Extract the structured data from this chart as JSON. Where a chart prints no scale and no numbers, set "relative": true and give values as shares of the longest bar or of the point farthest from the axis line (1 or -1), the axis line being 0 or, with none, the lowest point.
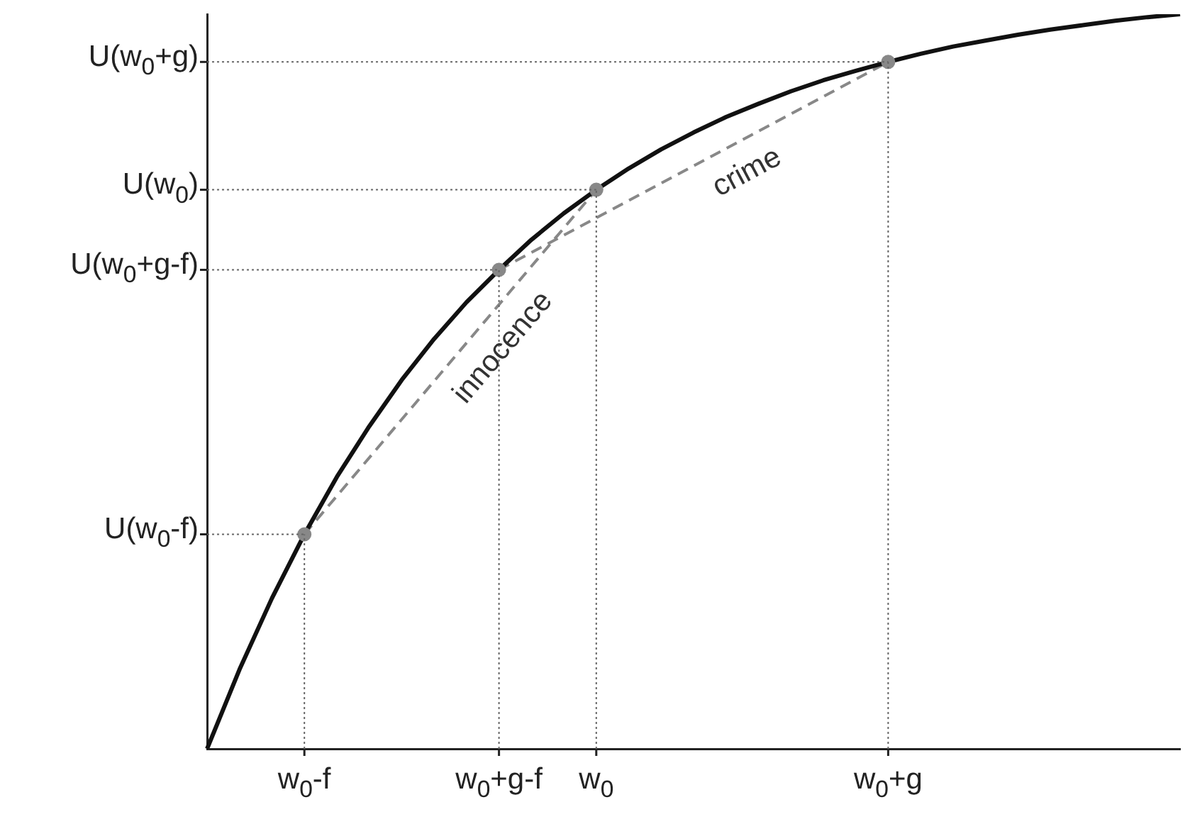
{
  "chart_data": {
    "type": "line",
    "relative": true,
    "categories": [
      null,
      null,
      null,
      "w$_{0}$-f",
      null,
      null,
      null,
      null,
      null,
      "w$_{0}$+g-f",
      null,
      null,
      "w$_{0}$",
      null,
      null,
      null,
      null,
      null,
      null,
      null,
      null,
      "w$_{0}$+g",
      null,
      null,
      null,
      null,
      null,
      null,
      null,
      null,
      null
    ],
    "series": [
      {
        "color": "#111111",
        "line_style": "solid",
        "marker": "none",
        "values": [
          0,
          0.108,
          0.205,
          0.292,
          0.37,
          0.439,
          0.502,
          0.558,
          0.608,
          0.652,
          0.693,
          0.729,
          0.761,
          0.79,
          0.816,
          0.839,
          0.86,
          0.878,
          0.895,
          0.91,
          0.923,
          0.935,
          0.946,
          0.956,
          0.964,
          0.972,
          0.979,
          0.985,
          0.991,
          0.996,
          1
        ]
      },
      {
        "color": "#888888",
        "line_style": "dashed",
        "marker": "none",
        "values": [
          null,
          null,
          null,
          0.292,
          null,
          null,
          null,
          null,
          null,
          null,
          null,
          null,
          0.761,
          null,
          null,
          null,
          null,
          null,
          null,
          null,
          null,
          null,
          null,
          null,
          null,
          null,
          null,
          null,
          null,
          null,
          null
        ]
      },
      {
        "color": "#888888",
        "line_style": "dashed",
        "marker": "none",
        "values": [
          null,
          null,
          null,
          null,
          null,
          null,
          null,
          null,
          null,
          0.652,
          null,
          null,
          null,
          null,
          null,
          null,
          null,
          null,
          null,
          null,
          null,
          0.935,
          null,
          null,
          null,
          null,
          null,
          null,
          null,
          null,
          null
        ]
      },
      {
        "type": "scatter",
        "color": "#888888",
        "marker": "circle",
        "values": [
          null,
          null,
          null,
          0.292,
          null,
          null,
          null,
          null,
          null,
          0.652,
          null,
          null,
          0.761,
          null,
          null,
          null,
          null,
          null,
          null,
          null,
          null,
          0.935,
          null,
          null,
          null,
          null,
          null,
          null,
          null,
          null,
          null
        ]
      }
    ],
    "annotations": [
      "U(w$_{0}$-f)",
      "U(w$_{0}$+g-f)",
      "U(w$_{0}$)",
      "U(w$_{0}$+g)",
      "innocence",
      "crime"
    ],
    "legend": false
  }
}
